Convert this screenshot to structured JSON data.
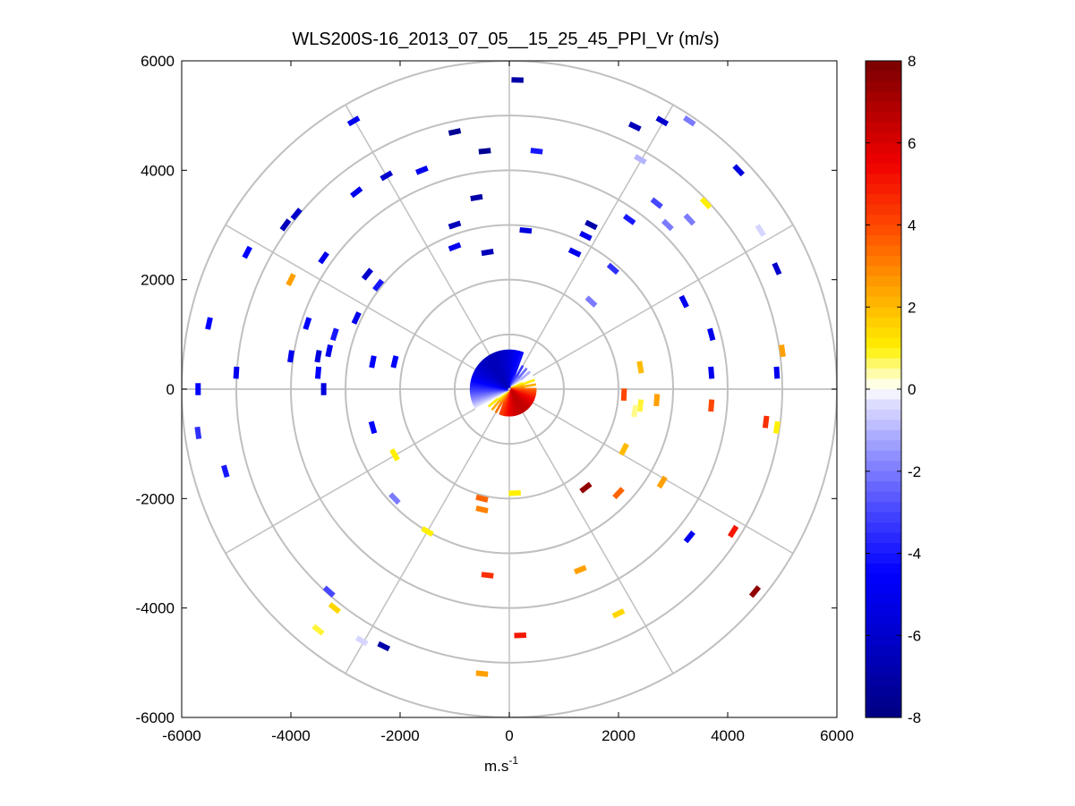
{
  "chart_data": {
    "type": "scatter",
    "subtype": "polar-ppi",
    "title": "WLS200S-16_2013_07_05__15_25_45_PPI_Vr (m/s)",
    "xlabel": "m.s",
    "xlabel_sup": "-1",
    "ylabel": "",
    "xlim": [
      -6000,
      6000
    ],
    "ylim": [
      -6000,
      6000
    ],
    "xticks": [
      -6000,
      -4000,
      -2000,
      0,
      2000,
      4000,
      6000
    ],
    "yticks": [
      -6000,
      -4000,
      -2000,
      0,
      2000,
      4000,
      6000
    ],
    "xtick_labels": [
      "-6000",
      "-4000",
      "-2000",
      "0",
      "2000",
      "4000",
      "6000"
    ],
    "ytick_labels": [
      "-6000",
      "-4000",
      "-2000",
      "0",
      "2000",
      "4000",
      "6000"
    ],
    "range_rings": [
      1000,
      2000,
      3000,
      4000,
      5000,
      6000
    ],
    "azimuth_spokes_deg": [
      0,
      30,
      60,
      90,
      120,
      150,
      180,
      210,
      240,
      270,
      300,
      330
    ],
    "colorbar": {
      "min": -8,
      "max": 8,
      "ticks": [
        8,
        6,
        4,
        2,
        0,
        -2,
        -4,
        -6,
        -8
      ],
      "tick_labels": [
        "8",
        "6",
        "4",
        "2",
        "0",
        "-2",
        "-4",
        "-6",
        "-8"
      ]
    },
    "near_field": {
      "max_range": 700,
      "description": "dense returns near the lidar"
    },
    "gates": [
      {
        "x": 150,
        "y": 5650,
        "v": -7
      },
      {
        "x": -1000,
        "y": 4700,
        "v": -7.5
      },
      {
        "x": -450,
        "y": 4350,
        "v": -7.5
      },
      {
        "x": 500,
        "y": 4350,
        "v": -4
      },
      {
        "x": -2850,
        "y": 4900,
        "v": -5
      },
      {
        "x": 2300,
        "y": 4800,
        "v": -6.5
      },
      {
        "x": 2800,
        "y": 4900,
        "v": -6
      },
      {
        "x": 3300,
        "y": 4900,
        "v": -2
      },
      {
        "x": 2400,
        "y": 4200,
        "v": -1
      },
      {
        "x": 4200,
        "y": 4000,
        "v": -5.5
      },
      {
        "x": -1600,
        "y": 4000,
        "v": -5
      },
      {
        "x": -2250,
        "y": 3900,
        "v": -6
      },
      {
        "x": -2800,
        "y": 3600,
        "v": -5
      },
      {
        "x": -3900,
        "y": 3200,
        "v": -6
      },
      {
        "x": -4100,
        "y": 3000,
        "v": -6.5
      },
      {
        "x": -600,
        "y": 3500,
        "v": -7
      },
      {
        "x": -1000,
        "y": 3000,
        "v": -6.5
      },
      {
        "x": 300,
        "y": 2900,
        "v": -5.5
      },
      {
        "x": 1500,
        "y": 3000,
        "v": -7
      },
      {
        "x": 1400,
        "y": 2800,
        "v": -5
      },
      {
        "x": 2200,
        "y": 3100,
        "v": -4
      },
      {
        "x": 2700,
        "y": 3400,
        "v": -3
      },
      {
        "x": 2900,
        "y": 3000,
        "v": -2
      },
      {
        "x": 3300,
        "y": 3100,
        "v": -2
      },
      {
        "x": 3600,
        "y": 3400,
        "v": 1
      },
      {
        "x": 4600,
        "y": 2900,
        "v": -0.5
      },
      {
        "x": -4800,
        "y": 2500,
        "v": -4.5
      },
      {
        "x": -3400,
        "y": 2400,
        "v": -5
      },
      {
        "x": -4000,
        "y": 2000,
        "v": 2.5
      },
      {
        "x": -2600,
        "y": 2100,
        "v": -6
      },
      {
        "x": -2400,
        "y": 1900,
        "v": -4
      },
      {
        "x": -1000,
        "y": 2600,
        "v": -5
      },
      {
        "x": -400,
        "y": 2500,
        "v": -6.5
      },
      {
        "x": 1200,
        "y": 2500,
        "v": -5
      },
      {
        "x": 1900,
        "y": 2200,
        "v": -3.5
      },
      {
        "x": 1500,
        "y": 1600,
        "v": -2
      },
      {
        "x": 4900,
        "y": 2200,
        "v": -6
      },
      {
        "x": 3200,
        "y": 1600,
        "v": -5
      },
      {
        "x": 5000,
        "y": 700,
        "v": 2.5
      },
      {
        "x": 4900,
        "y": 300,
        "v": -5
      },
      {
        "x": -5500,
        "y": 1200,
        "v": -4.5
      },
      {
        "x": -3700,
        "y": 1200,
        "v": -4.5
      },
      {
        "x": -2800,
        "y": 1300,
        "v": -5
      },
      {
        "x": -3200,
        "y": 1000,
        "v": -4
      },
      {
        "x": -3300,
        "y": 700,
        "v": -5
      },
      {
        "x": -3500,
        "y": 600,
        "v": -5.5
      },
      {
        "x": -4000,
        "y": 600,
        "v": -5
      },
      {
        "x": -5000,
        "y": 300,
        "v": -5
      },
      {
        "x": -5700,
        "y": 0,
        "v": -4.5
      },
      {
        "x": -3500,
        "y": 300,
        "v": -4.5
      },
      {
        "x": -3400,
        "y": 0,
        "v": -5.5
      },
      {
        "x": -2500,
        "y": 500,
        "v": -4.5
      },
      {
        "x": -2100,
        "y": 500,
        "v": -4.5
      },
      {
        "x": 3700,
        "y": 1000,
        "v": -5
      },
      {
        "x": 2400,
        "y": 400,
        "v": 2
      },
      {
        "x": 3700,
        "y": 300,
        "v": -5
      },
      {
        "x": 2700,
        "y": -200,
        "v": 2.5
      },
      {
        "x": 3700,
        "y": -300,
        "v": 4
      },
      {
        "x": 4700,
        "y": -600,
        "v": 4.5
      },
      {
        "x": 4900,
        "y": -700,
        "v": 1
      },
      {
        "x": 2400,
        "y": -300,
        "v": 0.8
      },
      {
        "x": 2300,
        "y": -400,
        "v": 0.5
      },
      {
        "x": 2100,
        "y": -100,
        "v": 4
      },
      {
        "x": -5700,
        "y": -800,
        "v": -3.5
      },
      {
        "x": -5200,
        "y": -1500,
        "v": -4
      },
      {
        "x": -2500,
        "y": -700,
        "v": -4.5
      },
      {
        "x": -2100,
        "y": -1200,
        "v": 1
      },
      {
        "x": -2100,
        "y": -2000,
        "v": -2
      },
      {
        "x": -1500,
        "y": -2600,
        "v": 1
      },
      {
        "x": -3300,
        "y": -3700,
        "v": -3
      },
      {
        "x": -3200,
        "y": -4000,
        "v": 1.5
      },
      {
        "x": -3500,
        "y": -4400,
        "v": 0.8
      },
      {
        "x": -2700,
        "y": -4600,
        "v": -0.5
      },
      {
        "x": -2300,
        "y": -4700,
        "v": -7
      },
      {
        "x": -500,
        "y": -5200,
        "v": 2.5
      },
      {
        "x": -400,
        "y": -3400,
        "v": 4.5
      },
      {
        "x": 200,
        "y": -4500,
        "v": 5
      },
      {
        "x": 1300,
        "y": -3300,
        "v": 2.5
      },
      {
        "x": 2000,
        "y": -4100,
        "v": 1.5
      },
      {
        "x": 1400,
        "y": -1800,
        "v": 7.5
      },
      {
        "x": 2000,
        "y": -1900,
        "v": 3.5
      },
      {
        "x": 2800,
        "y": -1700,
        "v": 2.5
      },
      {
        "x": 2100,
        "y": -1100,
        "v": 2
      },
      {
        "x": 3300,
        "y": -2700,
        "v": -5
      },
      {
        "x": 4100,
        "y": -2600,
        "v": 5
      },
      {
        "x": 4500,
        "y": -3700,
        "v": 7.5
      },
      {
        "x": -500,
        "y": -2200,
        "v": 3
      },
      {
        "x": -500,
        "y": -2000,
        "v": 3.5
      },
      {
        "x": 100,
        "y": -1900,
        "v": 1
      }
    ]
  }
}
